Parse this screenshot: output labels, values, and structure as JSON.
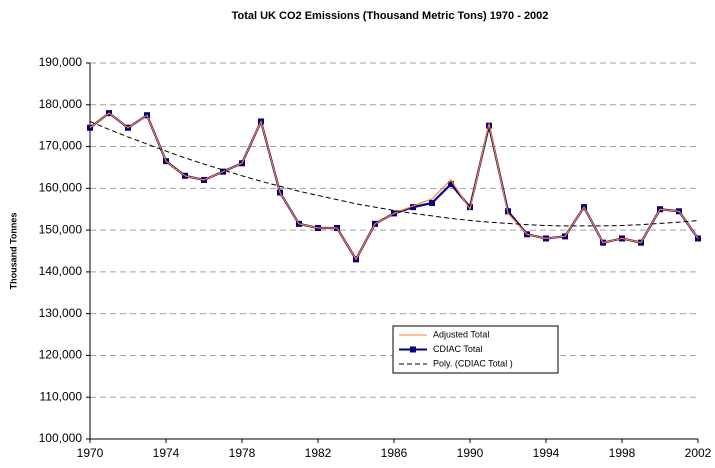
{
  "chart_data": {
    "type": "line",
    "title": "Total UK CO2 Emissions (Thousand Metric Tons) 1970 - 2002",
    "y_label": "Thousand Tonnes",
    "x": [
      1970,
      1971,
      1972,
      1973,
      1974,
      1975,
      1976,
      1977,
      1978,
      1979,
      1980,
      1981,
      1982,
      1983,
      1984,
      1985,
      1986,
      1987,
      1988,
      1989,
      1990,
      1991,
      1992,
      1993,
      1994,
      1995,
      1996,
      1997,
      1998,
      1999,
      2000,
      2001,
      2002
    ],
    "series": [
      {
        "name": "Adjusted Total",
        "color": "#ff7f27",
        "marker": "none",
        "dashed": false,
        "values": [
          174500,
          178000,
          174500,
          177500,
          166500,
          163000,
          162000,
          164000,
          166000,
          176000,
          159000,
          151500,
          150500,
          150500,
          143000,
          151500,
          154000,
          155800,
          157500,
          162000,
          155000,
          175500,
          154000,
          149000,
          148000,
          148500,
          155500,
          147000,
          148000,
          147000,
          155000,
          154500,
          148000
        ]
      },
      {
        "name": "CDIAC Total",
        "color": "#000080",
        "marker": "square",
        "dashed": false,
        "values": [
          174500,
          178000,
          174500,
          177500,
          166500,
          163000,
          162000,
          164000,
          166000,
          176000,
          159000,
          151500,
          150500,
          150500,
          143000,
          151500,
          154000,
          155500,
          156500,
          161000,
          155500,
          175000,
          154500,
          149000,
          148000,
          148500,
          155500,
          147000,
          148000,
          147000,
          155000,
          154500,
          148000
        ]
      },
      {
        "name": "Poly. (CDIAC Total )",
        "color": "#000000",
        "marker": "none",
        "dashed": true,
        "values": [
          176000,
          174100,
          172300,
          170600,
          168900,
          167300,
          165800,
          164400,
          163000,
          161700,
          160500,
          159300,
          158300,
          157300,
          156300,
          155500,
          154700,
          154000,
          153400,
          152800,
          152300,
          151900,
          151600,
          151300,
          151100,
          151000,
          151000,
          151000,
          151100,
          151300,
          151600,
          151900,
          152300
        ]
      }
    ],
    "xlim": [
      1970,
      2002
    ],
    "xticks": [
      1970,
      1974,
      1978,
      1982,
      1986,
      1990,
      1994,
      1998,
      2002
    ],
    "ylim": [
      100000,
      190000
    ],
    "yticks": [
      {
        "value": 100000,
        "label": "100,000"
      },
      {
        "value": 110000,
        "label": "110,000"
      },
      {
        "value": 120000,
        "label": "120,000"
      },
      {
        "value": 130000,
        "label": "130,000"
      },
      {
        "value": 140000,
        "label": "140,000"
      },
      {
        "value": 150000,
        "label": "150,000"
      },
      {
        "value": 160000,
        "label": "160,000"
      },
      {
        "value": 170000,
        "label": "170,000"
      },
      {
        "value": 180000,
        "label": "180,000"
      },
      {
        "value": 190000,
        "label": "190,000"
      }
    ],
    "grid": true,
    "legend": "bottom-center"
  }
}
